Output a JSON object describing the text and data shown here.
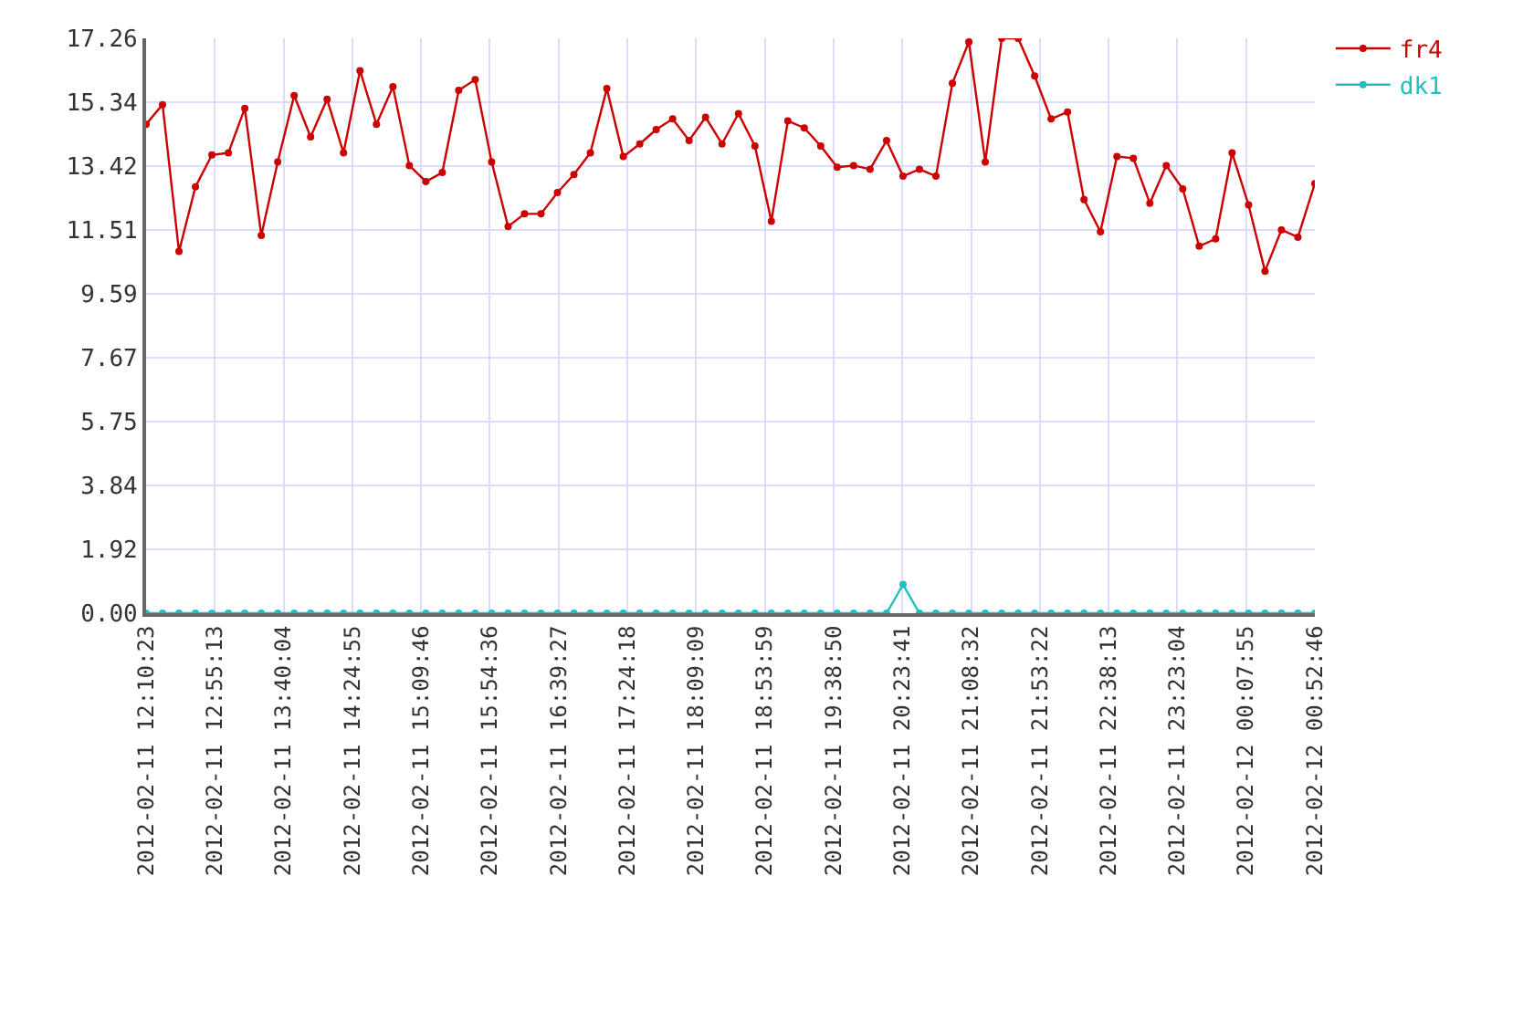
{
  "chart_data": {
    "type": "line",
    "x": [
      "2012-02-11T12:10:23",
      "2012-02-11T12:21:07",
      "2012-02-11T12:31:51",
      "2012-02-11T12:42:35",
      "2012-02-11T12:53:19",
      "2012-02-11T13:04:03",
      "2012-02-11T13:14:47",
      "2012-02-11T13:25:31",
      "2012-02-11T13:36:15",
      "2012-02-11T13:46:59",
      "2012-02-11T13:57:43",
      "2012-02-11T14:08:27",
      "2012-02-11T14:19:11",
      "2012-02-11T14:29:55",
      "2012-02-11T14:40:39",
      "2012-02-11T14:51:23",
      "2012-02-11T15:02:07",
      "2012-02-11T15:12:51",
      "2012-02-11T15:23:35",
      "2012-02-11T15:34:19",
      "2012-02-11T15:45:03",
      "2012-02-11T15:55:47",
      "2012-02-11T16:06:31",
      "2012-02-11T16:17:15",
      "2012-02-11T16:27:59",
      "2012-02-11T16:38:43",
      "2012-02-11T16:49:27",
      "2012-02-11T17:00:11",
      "2012-02-11T17:10:55",
      "2012-02-11T17:21:39",
      "2012-02-11T17:32:23",
      "2012-02-11T17:43:07",
      "2012-02-11T17:53:51",
      "2012-02-11T18:04:35",
      "2012-02-11T18:15:19",
      "2012-02-11T18:26:03",
      "2012-02-11T18:36:47",
      "2012-02-11T18:47:31",
      "2012-02-11T18:58:15",
      "2012-02-11T19:08:59",
      "2012-02-11T19:19:43",
      "2012-02-11T19:30:27",
      "2012-02-11T19:41:11",
      "2012-02-11T19:51:55",
      "2012-02-11T20:02:39",
      "2012-02-11T20:13:23",
      "2012-02-11T20:24:07",
      "2012-02-11T20:34:51",
      "2012-02-11T20:45:35",
      "2012-02-11T20:56:19",
      "2012-02-11T21:07:03",
      "2012-02-11T21:17:47",
      "2012-02-11T21:28:31",
      "2012-02-11T21:39:15",
      "2012-02-11T21:49:59",
      "2012-02-11T22:00:43",
      "2012-02-11T22:11:27",
      "2012-02-11T22:22:11",
      "2012-02-11T22:32:55",
      "2012-02-11T22:43:39",
      "2012-02-11T22:54:23",
      "2012-02-11T23:05:07",
      "2012-02-11T23:15:51",
      "2012-02-11T23:26:35",
      "2012-02-11T23:37:19",
      "2012-02-11T23:48:03",
      "2012-02-11T23:58:47",
      "2012-02-12T00:09:31",
      "2012-02-12T00:20:15",
      "2012-02-12T00:30:59",
      "2012-02-12T00:41:43",
      "2012-02-12T00:52:46"
    ],
    "series": [
      {
        "name": "fr4",
        "color": "#cc0000",
        "values": [
          14.68,
          15.27,
          10.86,
          12.8,
          13.76,
          13.82,
          15.16,
          11.34,
          13.55,
          15.54,
          14.3,
          15.43,
          13.82,
          16.29,
          14.68,
          15.81,
          13.44,
          12.96,
          13.23,
          15.7,
          16.02,
          13.55,
          11.61,
          11.99,
          11.99,
          12.63,
          13.17,
          13.82,
          15.75,
          13.71,
          14.09,
          14.52,
          14.84,
          14.19,
          14.89,
          14.09,
          15.0,
          14.03,
          11.77,
          14.78,
          14.57,
          14.03,
          13.39,
          13.44,
          13.33,
          14.19,
          13.12,
          13.33,
          13.12,
          15.91,
          17.15,
          13.55,
          17.26,
          17.26,
          16.13,
          14.84,
          15.05,
          12.42,
          11.45,
          13.71,
          13.66,
          12.31,
          13.44,
          12.74,
          11.02,
          11.24,
          13.82,
          12.26,
          10.27,
          11.51,
          11.29,
          12.9
        ]
      },
      {
        "name": "dk1",
        "color": "#20c0c0",
        "values": [
          0,
          0,
          0,
          0,
          0,
          0,
          0,
          0,
          0,
          0,
          0,
          0,
          0,
          0,
          0,
          0,
          0,
          0,
          0,
          0,
          0,
          0,
          0,
          0,
          0,
          0,
          0,
          0,
          0,
          0,
          0,
          0,
          0,
          0,
          0,
          0,
          0,
          0,
          0,
          0,
          0,
          0,
          0,
          0,
          0,
          0,
          0.86,
          0,
          0,
          0,
          0,
          0,
          0,
          0,
          0,
          0,
          0,
          0,
          0,
          0,
          0,
          0,
          0,
          0,
          0,
          0,
          0,
          0,
          0,
          0,
          0,
          0
        ]
      }
    ],
    "xlim": [
      "2012-02-11T12:10:23",
      "2012-02-12T00:52:46"
    ],
    "xticks": [
      {
        "value": "2012-02-11T12:10:23",
        "label": "2012-02-11 12:10:23"
      },
      {
        "value": "2012-02-11T12:55:13",
        "label": "2012-02-11 12:55:13"
      },
      {
        "value": "2012-02-11T13:40:04",
        "label": "2012-02-11 13:40:04"
      },
      {
        "value": "2012-02-11T14:24:55",
        "label": "2012-02-11 14:24:55"
      },
      {
        "value": "2012-02-11T15:09:46",
        "label": "2012-02-11 15:09:46"
      },
      {
        "value": "2012-02-11T15:54:36",
        "label": "2012-02-11 15:54:36"
      },
      {
        "value": "2012-02-11T16:39:27",
        "label": "2012-02-11 16:39:27"
      },
      {
        "value": "2012-02-11T17:24:18",
        "label": "2012-02-11 17:24:18"
      },
      {
        "value": "2012-02-11T18:09:09",
        "label": "2012-02-11 18:09:09"
      },
      {
        "value": "2012-02-11T18:53:59",
        "label": "2012-02-11 18:53:59"
      },
      {
        "value": "2012-02-11T19:38:50",
        "label": "2012-02-11 19:38:50"
      },
      {
        "value": "2012-02-11T20:23:41",
        "label": "2012-02-11 20:23:41"
      },
      {
        "value": "2012-02-11T21:08:32",
        "label": "2012-02-11 21:08:32"
      },
      {
        "value": "2012-02-11T21:53:22",
        "label": "2012-02-11 21:53:22"
      },
      {
        "value": "2012-02-11T22:38:13",
        "label": "2012-02-11 22:38:13"
      },
      {
        "value": "2012-02-11T23:23:04",
        "label": "2012-02-11 23:23:04"
      },
      {
        "value": "2012-02-12T00:07:55",
        "label": "2012-02-12 00:07:55"
      },
      {
        "value": "2012-02-12T00:52:46",
        "label": "2012-02-12 00:52:46"
      }
    ],
    "ylim": [
      0,
      17.26
    ],
    "yticks": [
      {
        "value": 0,
        "label": "0.00"
      },
      1.92,
      3.84,
      5.75,
      7.67,
      9.59,
      11.51,
      13.42,
      15.34,
      17.26
    ],
    "grid": true,
    "legend": "top right",
    "marker": "circle",
    "line_style": "solid"
  }
}
